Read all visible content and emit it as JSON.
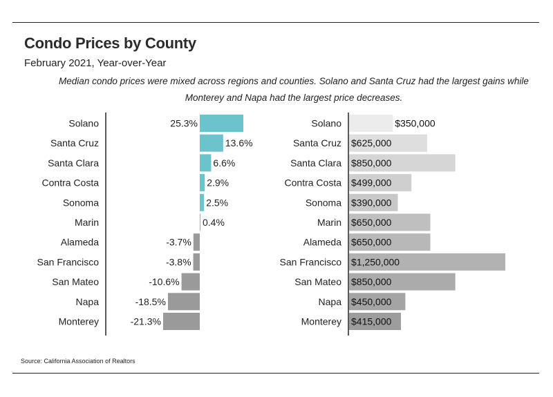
{
  "header": {
    "title": "Condo Prices by County",
    "subtitle": "February 2021, Year-over-Year",
    "description": "Median condo prices were mixed across regions and counties. Solano and Santa Cruz had the largest gains while Monterey and Napa had the largest price decreases."
  },
  "footer": {
    "source": "Source:  California Association of Realtors"
  },
  "colors": {
    "positive": "#6cc3cc",
    "negative": "#9a9a9a",
    "price_fills": [
      "#ececec",
      "#dedede",
      "#d6d6d6",
      "#cfcfcf",
      "#c8c8c8",
      "#bfbfbf",
      "#b8b8b8",
      "#b2b2b2",
      "#ababab",
      "#a4a4a4",
      "#9d9d9d"
    ]
  },
  "chart_data": [
    {
      "type": "bar",
      "orientation": "horizontal",
      "title": "",
      "metric": "Year-over-Year % change",
      "categories": [
        "Solano",
        "Santa Cruz",
        "Santa Clara",
        "Contra Costa",
        "Sonoma",
        "Marin",
        "Alameda",
        "San Francisco",
        "San Mateo",
        "Napa",
        "Monterey"
      ],
      "values": [
        25.3,
        13.6,
        6.6,
        2.9,
        2.5,
        0.4,
        -3.7,
        -3.8,
        -10.6,
        -18.5,
        -21.3
      ],
      "labels": [
        "25.3%",
        "13.6%",
        "6.6%",
        "2.9%",
        "2.5%",
        "0.4%",
        "-3.7%",
        "-3.8%",
        "-10.6%",
        "-18.5%",
        "-21.3%"
      ],
      "xlim": [
        -25,
        25.3
      ],
      "grid": false
    },
    {
      "type": "bar",
      "orientation": "horizontal",
      "title": "",
      "metric": "Median price",
      "categories": [
        "Solano",
        "Santa Cruz",
        "Santa Clara",
        "Contra Costa",
        "Sonoma",
        "Marin",
        "Alameda",
        "San Francisco",
        "San Mateo",
        "Napa",
        "Monterey"
      ],
      "values": [
        350000,
        625000,
        850000,
        499000,
        390000,
        650000,
        650000,
        1250000,
        850000,
        450000,
        415000
      ],
      "labels": [
        "$350,000",
        "$625,000",
        "$850,000",
        "$499,000",
        "$390,000",
        "$650,000",
        "$650,000",
        "$1,250,000",
        "$850,000",
        "$450,000",
        "$415,000"
      ],
      "xlim": [
        0,
        1250000
      ],
      "grid": false
    }
  ]
}
